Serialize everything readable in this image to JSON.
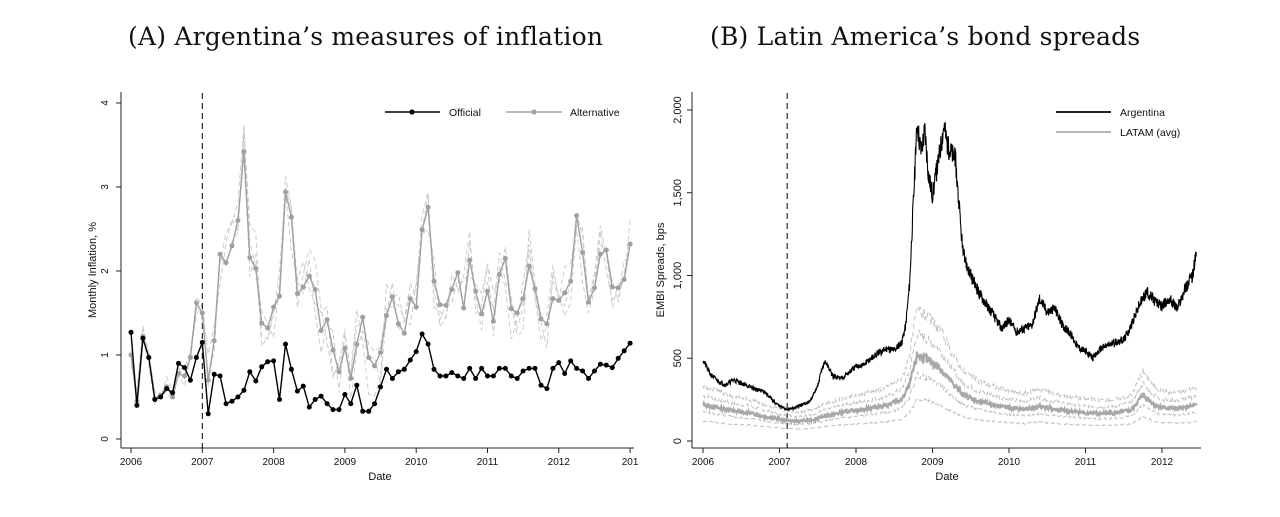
{
  "panel_a": {
    "label": "(A)",
    "title": "Argentina’s measures of inflation"
  },
  "panel_b": {
    "label": "(B)",
    "title": "Latin America’s bond spreads"
  },
  "chart_data": [
    {
      "type": "line",
      "title": "Argentina’s measures of inflation",
      "xlabel": "Date",
      "ylabel": "Monthly Inflation, %",
      "xlim": [
        2006,
        2013
      ],
      "ylim": [
        0,
        4
      ],
      "x_ticks": [
        "2006",
        "2007",
        "2008",
        "2009",
        "2010",
        "2011",
        "2012",
        "201"
      ],
      "y_ticks": [
        "0",
        "1",
        "2",
        "3",
        "4"
      ],
      "vline_x": 2007.0,
      "legend_position": "top-right",
      "grid": false,
      "series": [
        {
          "name": "Official",
          "color": "#000000",
          "start": "2006-01",
          "freq": "monthly",
          "values": [
            1.27,
            0.4,
            1.2,
            0.97,
            0.47,
            0.5,
            0.6,
            0.55,
            0.9,
            0.85,
            0.7,
            0.97,
            1.15,
            0.3,
            0.77,
            0.75,
            0.42,
            0.45,
            0.5,
            0.58,
            0.8,
            0.69,
            0.86,
            0.92,
            0.93,
            0.47,
            1.13,
            0.83,
            0.57,
            0.63,
            0.38,
            0.47,
            0.51,
            0.42,
            0.35,
            0.35,
            0.53,
            0.42,
            0.64,
            0.33,
            0.33,
            0.42,
            0.62,
            0.83,
            0.72,
            0.8,
            0.83,
            0.94,
            1.04,
            1.25,
            1.13,
            0.83,
            0.75,
            0.75,
            0.79,
            0.75,
            0.72,
            0.84,
            0.72,
            0.84,
            0.75,
            0.75,
            0.84,
            0.84,
            0.75,
            0.72,
            0.81,
            0.84,
            0.84,
            0.64,
            0.6,
            0.84,
            0.91,
            0.78,
            0.93,
            0.84,
            0.81,
            0.72,
            0.81,
            0.89,
            0.88,
            0.85,
            0.96,
            1.05,
            1.14
          ]
        },
        {
          "name": "Alternative",
          "color": "#a0a0a0",
          "start": "2006-01",
          "freq": "monthly",
          "values": [
            1.0,
            0.45,
            1.22,
            0.97,
            0.48,
            0.52,
            0.62,
            0.5,
            0.78,
            0.75,
            0.97,
            1.62,
            1.5,
            0.7,
            1.17,
            2.2,
            2.1,
            2.3,
            2.6,
            3.42,
            2.16,
            2.03,
            1.38,
            1.32,
            1.57,
            1.7,
            2.94,
            2.64,
            1.73,
            1.81,
            1.94,
            1.78,
            1.29,
            1.42,
            1.06,
            0.8,
            1.08,
            0.72,
            1.13,
            1.45,
            0.97,
            0.87,
            1.03,
            1.47,
            1.69,
            1.37,
            1.26,
            1.67,
            1.57,
            2.49,
            2.76,
            1.88,
            1.6,
            1.59,
            1.78,
            1.98,
            1.56,
            2.13,
            1.76,
            1.49,
            1.76,
            1.4,
            1.96,
            2.15,
            1.55,
            1.5,
            1.67,
            2.06,
            1.79,
            1.43,
            1.37,
            1.67,
            1.65,
            1.74,
            1.88,
            2.66,
            2.22,
            1.63,
            1.8,
            2.2,
            2.25,
            1.81,
            1.8,
            1.9,
            2.32
          ]
        }
      ]
    },
    {
      "type": "line",
      "title": "Latin America’s bond spreads",
      "xlabel": "Date",
      "ylabel": "EMBI Spreads, bps",
      "xlim": [
        2006,
        2012.5
      ],
      "ylim": [
        0,
        2000
      ],
      "x_ticks": [
        "2006",
        "2007",
        "2008",
        "2009",
        "2010",
        "2011",
        "2012"
      ],
      "y_ticks": [
        "0",
        "500",
        "1,000",
        "1,500",
        "2,000"
      ],
      "vline_x": 2007.1,
      "legend_position": "top-right",
      "grid": false,
      "series": [
        {
          "name": "Argentina",
          "color": "#000000",
          "points": [
            [
              2006.0,
              490
            ],
            [
              2006.1,
              400
            ],
            [
              2006.2,
              360
            ],
            [
              2006.3,
              340
            ],
            [
              2006.4,
              370
            ],
            [
              2006.5,
              350
            ],
            [
              2006.6,
              330
            ],
            [
              2006.7,
              310
            ],
            [
              2006.8,
              300
            ],
            [
              2006.9,
              250
            ],
            [
              2007.0,
              210
            ],
            [
              2007.1,
              190
            ],
            [
              2007.2,
              200
            ],
            [
              2007.3,
              220
            ],
            [
              2007.4,
              240
            ],
            [
              2007.5,
              330
            ],
            [
              2007.55,
              430
            ],
            [
              2007.6,
              480
            ],
            [
              2007.7,
              390
            ],
            [
              2007.8,
              380
            ],
            [
              2007.9,
              410
            ],
            [
              2008.0,
              450
            ],
            [
              2008.1,
              460
            ],
            [
              2008.2,
              500
            ],
            [
              2008.3,
              530
            ],
            [
              2008.4,
              560
            ],
            [
              2008.5,
              550
            ],
            [
              2008.6,
              600
            ],
            [
              2008.65,
              700
            ],
            [
              2008.7,
              950
            ],
            [
              2008.75,
              1450
            ],
            [
              2008.8,
              1920
            ],
            [
              2008.85,
              1750
            ],
            [
              2008.9,
              1880
            ],
            [
              2008.95,
              1600
            ],
            [
              2009.0,
              1490
            ],
            [
              2009.05,
              1620
            ],
            [
              2009.1,
              1760
            ],
            [
              2009.15,
              1910
            ],
            [
              2009.2,
              1780
            ],
            [
              2009.3,
              1700
            ],
            [
              2009.35,
              1400
            ],
            [
              2009.4,
              1130
            ],
            [
              2009.45,
              1060
            ],
            [
              2009.5,
              1000
            ],
            [
              2009.6,
              900
            ],
            [
              2009.7,
              830
            ],
            [
              2009.8,
              760
            ],
            [
              2009.9,
              680
            ],
            [
              2010.0,
              730
            ],
            [
              2010.1,
              660
            ],
            [
              2010.2,
              680
            ],
            [
              2010.3,
              700
            ],
            [
              2010.4,
              860
            ],
            [
              2010.5,
              780
            ],
            [
              2010.6,
              800
            ],
            [
              2010.7,
              700
            ],
            [
              2010.8,
              650
            ],
            [
              2010.9,
              570
            ],
            [
              2011.0,
              540
            ],
            [
              2011.1,
              500
            ],
            [
              2011.2,
              560
            ],
            [
              2011.3,
              580
            ],
            [
              2011.4,
              600
            ],
            [
              2011.5,
              610
            ],
            [
              2011.6,
              700
            ],
            [
              2011.7,
              820
            ],
            [
              2011.8,
              900
            ],
            [
              2011.9,
              850
            ],
            [
              2012.0,
              810
            ],
            [
              2012.1,
              860
            ],
            [
              2012.2,
              800
            ],
            [
              2012.3,
              920
            ],
            [
              2012.4,
              1000
            ],
            [
              2012.45,
              1140
            ]
          ]
        },
        {
          "name": "LATAM (avg)",
          "color": "#a8a8a8",
          "points": [
            [
              2006.0,
              220
            ],
            [
              2006.2,
              200
            ],
            [
              2006.4,
              180
            ],
            [
              2006.6,
              170
            ],
            [
              2006.8,
              150
            ],
            [
              2007.0,
              130
            ],
            [
              2007.2,
              120
            ],
            [
              2007.4,
              125
            ],
            [
              2007.6,
              150
            ],
            [
              2007.8,
              170
            ],
            [
              2008.0,
              185
            ],
            [
              2008.2,
              200
            ],
            [
              2008.4,
              215
            ],
            [
              2008.6,
              250
            ],
            [
              2008.7,
              340
            ],
            [
              2008.8,
              520
            ],
            [
              2008.9,
              500
            ],
            [
              2009.0,
              470
            ],
            [
              2009.1,
              440
            ],
            [
              2009.2,
              380
            ],
            [
              2009.3,
              330
            ],
            [
              2009.4,
              280
            ],
            [
              2009.6,
              240
            ],
            [
              2009.8,
              220
            ],
            [
              2010.0,
              200
            ],
            [
              2010.2,
              190
            ],
            [
              2010.4,
              210
            ],
            [
              2010.6,
              190
            ],
            [
              2010.8,
              180
            ],
            [
              2011.0,
              170
            ],
            [
              2011.2,
              165
            ],
            [
              2011.4,
              170
            ],
            [
              2011.6,
              185
            ],
            [
              2011.75,
              280
            ],
            [
              2011.9,
              220
            ],
            [
              2012.0,
              200
            ],
            [
              2012.2,
              195
            ],
            [
              2012.45,
              215
            ]
          ]
        }
      ]
    }
  ]
}
